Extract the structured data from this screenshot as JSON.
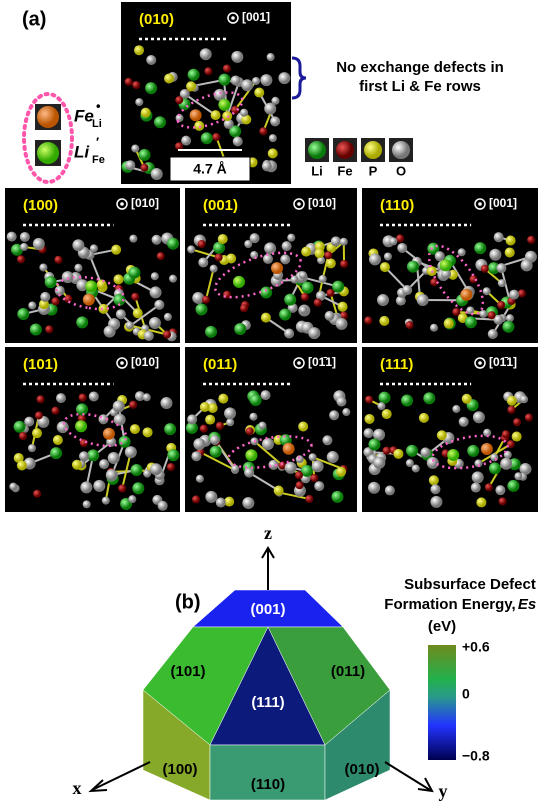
{
  "panel_a": {
    "label": "(a)",
    "top_panel": {
      "plane": "(010)",
      "direction": "[001]",
      "scale": "4.7 Å"
    },
    "note": [
      "No exchange defects in",
      "first Li & Fe rows"
    ],
    "defect_legend": [
      {
        "symbol": "Fe",
        "sup": "•",
        "sub": "Li"
      },
      {
        "symbol": "Li",
        "sup": "′",
        "sub": "Fe"
      }
    ],
    "atom_legend": [
      "Li",
      "Fe",
      "P",
      "O"
    ],
    "panels": [
      {
        "plane": "(100)",
        "direction": "[010]"
      },
      {
        "plane": "(001)",
        "direction": "[010]"
      },
      {
        "plane": "(110)",
        "direction": "[001]"
      },
      {
        "plane": "(101)",
        "direction": "[010]"
      },
      {
        "plane": "(011)",
        "direction": "[01̄1]"
      },
      {
        "plane": "(111)",
        "direction": "[01̄1]"
      }
    ]
  },
  "panel_b": {
    "label": "(b)",
    "axes": {
      "z": "z",
      "x": "x",
      "y": "y"
    },
    "faces": [
      "(001)",
      "(101)",
      "(011)",
      "(111)",
      "(100)",
      "(110)",
      "(010)"
    ],
    "colorbar": {
      "title": [
        "Subsurface Defect",
        "Formation Energy,",
        "Es",
        "(eV)"
      ],
      "ticks": [
        "+0.6",
        "0",
        "−0.8"
      ]
    }
  }
}
